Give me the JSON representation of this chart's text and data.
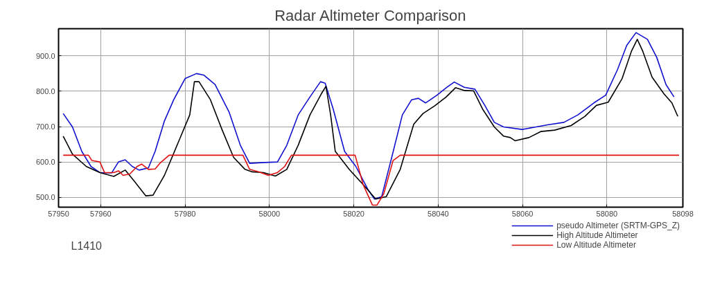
{
  "chart_data": {
    "type": "line",
    "title": "Radar Altimeter Comparison",
    "xlim": [
      57950,
      58098
    ],
    "xticks": [
      57950,
      57960,
      57980,
      58000,
      58020,
      58040,
      58060,
      58080,
      58098
    ],
    "ylim": [
      472,
      977
    ],
    "yticks": [
      {
        "value": 500,
        "label": "500.0"
      },
      {
        "value": 600,
        "label": "600.0"
      },
      {
        "value": 700,
        "label": "700.0"
      },
      {
        "value": 800,
        "label": "800.0"
      },
      {
        "value": 900,
        "label": "900.0"
      }
    ],
    "grid": true,
    "legend": "bottom right",
    "line_style": "solid",
    "annotations": [
      "L1410"
    ],
    "series": [
      {
        "name": "pseudo Altimeter (SRTM-GPS_Z)",
        "color": "#1010d0",
        "x": [
          57951.1,
          57953.3,
          57955.5,
          57957.7,
          57959.8,
          57962.6,
          57964.2,
          57965.8,
          57967.5,
          57969.1,
          57971.3,
          57972.9,
          57975.1,
          57977.3,
          57980,
          57982.7,
          57984.4,
          57987.1,
          57990.4,
          57993.1,
          57995.3,
          57998.1,
          58001.9,
          58004.1,
          58006.8,
          58009.6,
          58012.1,
          58013.2,
          58015.1,
          58017.8,
          58020.5,
          58023.3,
          58024.9,
          58026.6,
          58028.8,
          58031.5,
          58033.7,
          58035.3,
          58037,
          58039.7,
          58041.9,
          58043.8,
          58046.2,
          58048.7,
          58051.1,
          58053.3,
          58055.5,
          58059.9,
          58063.2,
          58065.9,
          58069.8,
          58073.1,
          58076.9,
          58079.7,
          58082.5,
          58084.7,
          58086.9,
          58089.6,
          58091.8,
          58094,
          58095.9
        ],
        "values": [
          737,
          699,
          630,
          587,
          570,
          569,
          600,
          606,
          587,
          577,
          583,
          630,
          716,
          776,
          836,
          850,
          846,
          819,
          742,
          647,
          596,
          598,
          600,
          647,
          733,
          784,
          827,
          823,
          750,
          630,
          587,
          523,
          495,
          502,
          604,
          733,
          776,
          780,
          767,
          789,
          810,
          826,
          811,
          806,
          759,
          712,
          699,
          692,
          699,
          705,
          712,
          733,
          767,
          789,
          861,
          930,
          966,
          947,
          896,
          819,
          784
        ]
      },
      {
        "name": "High Altitude Altimeter",
        "color": "#000000",
        "x": [
          57951.1,
          57953.3,
          57956.6,
          57959.8,
          57963.1,
          57965.8,
          57968,
          57970.7,
          57972.4,
          57975.1,
          57978.4,
          57981.1,
          57982.2,
          57983.3,
          57986,
          57988.8,
          57991.5,
          57994.2,
          57995.9,
          57998.6,
          58001.4,
          58004.1,
          58006.8,
          58009.6,
          58012.3,
          58013.4,
          58014.5,
          58015.6,
          58018.9,
          58022.2,
          58025.2,
          58027.7,
          58031,
          58034.2,
          58036.4,
          58039.2,
          58041.9,
          58044.1,
          58046.3,
          58048.4,
          58050.5,
          58053.3,
          58055.5,
          58057.1,
          58058.2,
          58061.5,
          58064.3,
          58067.6,
          58071.5,
          58074.8,
          58077.5,
          58080.3,
          58083.6,
          58085.8,
          58087.2,
          58088.5,
          58090.7,
          58093.5,
          58095.4,
          58096.8
        ],
        "values": [
          673,
          622,
          587,
          570,
          559,
          577,
          545,
          504,
          506,
          562,
          656,
          733,
          827,
          827,
          776,
          690,
          613,
          579,
          572,
          570,
          560,
          579,
          647,
          733,
          793,
          814,
          733,
          630,
          579,
          536,
          495,
          502,
          579,
          707,
          737,
          759,
          784,
          810,
          802,
          801,
          750,
          699,
          673,
          669,
          660,
          669,
          686,
          690,
          703,
          729,
          760,
          769,
          836,
          913,
          947,
          913,
          840,
          793,
          767,
          729
        ]
      },
      {
        "name": "Low Altitude Altimeter",
        "color": "#e01010",
        "x": [
          57951.1,
          57957.1,
          57957.9,
          57959.8,
          57960.9,
          57963.1,
          57964.2,
          57965.3,
          57966.9,
          57968.6,
          57969.7,
          57971.3,
          57972.9,
          57974,
          57976.2,
          57993.7,
          57995.3,
          57997.5,
          57999.7,
          58001.9,
          58003.6,
          58005.2,
          58020.3,
          58022.2,
          58024.4,
          58025.5,
          58027.1,
          58029.3,
          58031,
          58097.1
        ],
        "values": [
          619,
          619,
          604,
          600,
          570,
          570,
          575,
          562,
          566,
          587,
          594,
          579,
          580,
          596,
          619,
          619,
          579,
          572,
          562,
          570,
          587,
          619,
          619,
          536,
          478,
          478,
          510,
          604,
          619,
          619
        ]
      }
    ]
  }
}
